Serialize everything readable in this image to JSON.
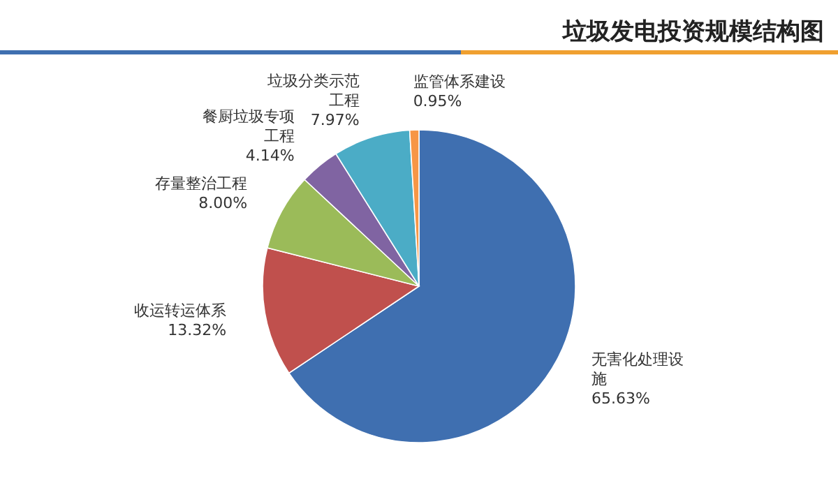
{
  "chart_data": {
    "type": "pie",
    "title": "垃圾发电投资规模结构图",
    "categories": [
      "无害化处理设施",
      "收运转运体系",
      "存量整治工程",
      "餐厨垃圾专项工程",
      "垃圾分类示范工程",
      "监管体系建设"
    ],
    "values": [
      65.63,
      13.32,
      8.0,
      4.14,
      7.97,
      0.95
    ],
    "value_labels": [
      "65.63%",
      "13.32%",
      "8.00%",
      "4.14%",
      "7.97%",
      "0.95%"
    ],
    "colors": [
      "#3f6fb0",
      "#c0504d",
      "#9bbb59",
      "#8064a2",
      "#4bacc6",
      "#f79646"
    ]
  }
}
